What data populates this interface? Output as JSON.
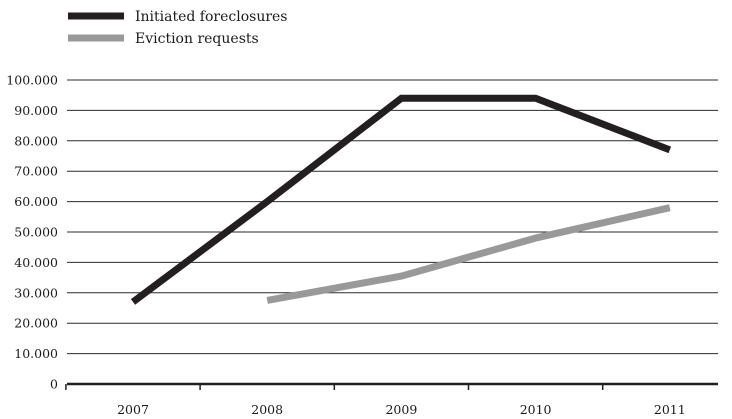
{
  "chart_data": {
    "type": "line",
    "title": "",
    "xlabel": "",
    "ylabel": "",
    "categories": [
      "2007",
      "2008",
      "2009",
      "2010",
      "2011"
    ],
    "ylim": [
      0,
      100000
    ],
    "yticks": [
      0,
      10000,
      20000,
      30000,
      40000,
      50000,
      60000,
      70000,
      80000,
      90000,
      100000
    ],
    "ytick_labels": [
      "0",
      "10.000",
      "20.000",
      "30.000",
      "40.000",
      "50.000",
      "60.000",
      "70.000",
      "80.000",
      "90.000",
      "100.000"
    ],
    "grid": true,
    "legend_position": "top-left",
    "series": [
      {
        "name": "Initiated foreclosures",
        "color": "#231f20",
        "values": [
          27000,
          60000,
          94000,
          94000,
          77000
        ]
      },
      {
        "name": "Eviction requests",
        "color": "#999999",
        "values": [
          null,
          27500,
          35500,
          48000,
          58000
        ]
      }
    ]
  }
}
